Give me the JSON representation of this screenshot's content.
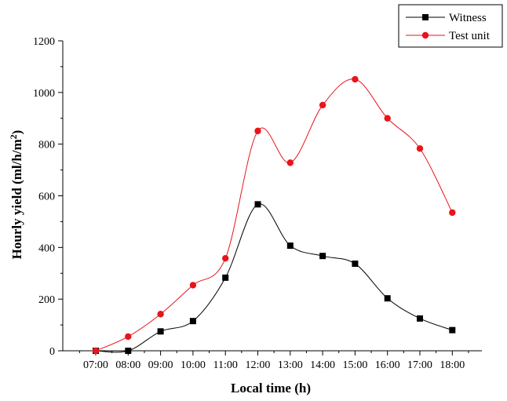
{
  "chart_data": {
    "type": "line",
    "categories": [
      "07:00",
      "08:00",
      "09:00",
      "10:00",
      "11:00",
      "12:00",
      "13:00",
      "14:00",
      "15:00",
      "16:00",
      "17:00",
      "18:00"
    ],
    "xlabel": "Local time (h)",
    "ylabel_main": "Hourly yield (ml/h/m",
    "ylabel_sup": "2",
    "ylabel_end": ")",
    "ylim": [
      0,
      1200
    ],
    "yticks": [
      "0",
      "200",
      "400",
      "600",
      "800",
      "1000",
      "1200"
    ],
    "grid": false,
    "legend_position": "top-right",
    "series": [
      {
        "name": "Witness",
        "color": "#000000",
        "marker": "square",
        "values": [
          0,
          0,
          75,
          115,
          283,
          567,
          407,
          367,
          337,
          203,
          125,
          80
        ]
      },
      {
        "name": "Test unit",
        "color": "#e8141a",
        "marker": "circle",
        "values": [
          0,
          55,
          142,
          254,
          358,
          851,
          728,
          951,
          1051,
          900,
          783,
          535
        ]
      }
    ]
  }
}
